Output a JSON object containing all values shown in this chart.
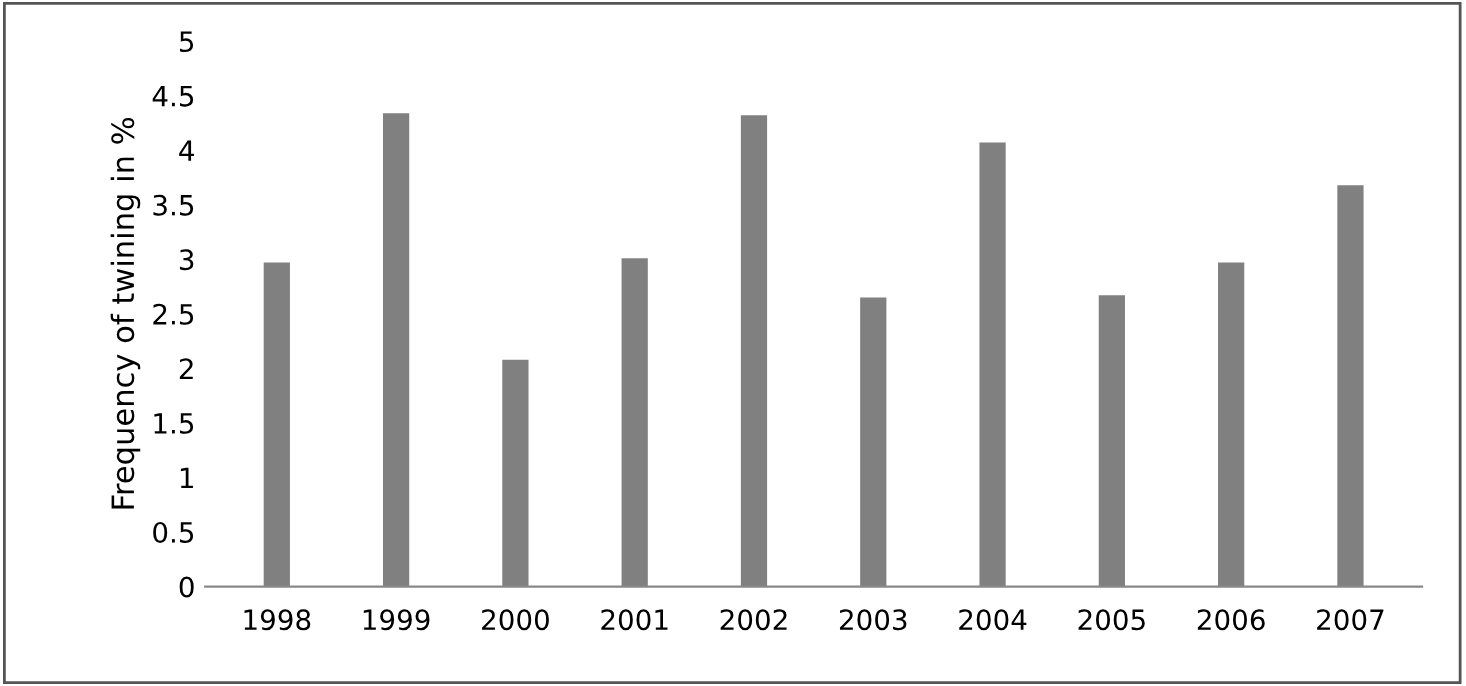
{
  "chart_data": {
    "type": "bar",
    "ylabel": "Frequency of twining in %",
    "categories": [
      "1998",
      "1999",
      "2000",
      "2001",
      "2002",
      "2003",
      "2004",
      "2005",
      "2006",
      "2007"
    ],
    "values": [
      2.97,
      4.34,
      2.08,
      3.01,
      4.32,
      2.65,
      4.07,
      2.67,
      2.97,
      3.68
    ],
    "color": "#808080",
    "ylim": [
      0,
      5
    ],
    "yticks": [
      0,
      0.5,
      1,
      1.5,
      2,
      2.5,
      3,
      3.5,
      4,
      4.5,
      5
    ],
    "grid": false
  }
}
